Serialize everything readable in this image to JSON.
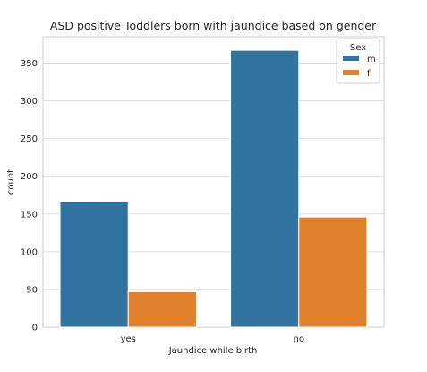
{
  "chart_data": {
    "type": "bar",
    "title": "ASD positive Toddlers born with jaundice based on gender",
    "xlabel": "Jaundice while birth",
    "ylabel": "count",
    "categories": [
      "yes",
      "no"
    ],
    "series": [
      {
        "name": "m",
        "values": [
          167,
          367
        ]
      },
      {
        "name": "f",
        "values": [
          47,
          146
        ]
      }
    ],
    "ylim": [
      0,
      385
    ],
    "yticks": [
      0,
      50,
      100,
      150,
      200,
      250,
      300,
      350
    ],
    "grid": true,
    "legend": {
      "title": "Sex",
      "placement": "top-right"
    },
    "colors": {
      "m": "#3274a1",
      "f": "#e1812c",
      "grid": "#dedede",
      "spine": "#cccccc"
    }
  }
}
